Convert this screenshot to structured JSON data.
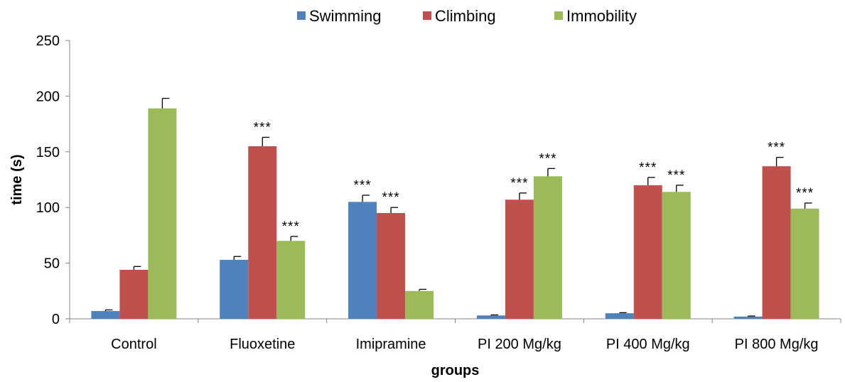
{
  "chart_data": {
    "type": "bar",
    "xlabel": "groups",
    "ylabel": "time (s)",
    "ylim": [
      0,
      250
    ],
    "yticks": [
      0,
      50,
      100,
      150,
      200,
      250
    ],
    "categories": [
      "Control",
      "Fluoxetine",
      "Imipramine",
      "PI 200 Mg/kg",
      "PI 400 Mg/kg",
      "PI 800 Mg/kg"
    ],
    "series": [
      {
        "name": "Swimming",
        "color": "#4F81BD",
        "values": [
          7,
          53,
          105,
          3,
          5,
          2
        ],
        "errors": [
          1,
          3,
          6,
          0.5,
          0.5,
          0.5
        ],
        "labels": [
          "",
          "",
          "***",
          "",
          "",
          ""
        ]
      },
      {
        "name": "Climbing",
        "color": "#C0504D",
        "values": [
          44,
          155,
          95,
          107,
          120,
          137
        ],
        "errors": [
          3,
          8,
          5,
          6,
          7,
          8
        ],
        "labels": [
          "",
          "***",
          "***",
          "***",
          "***",
          "***"
        ]
      },
      {
        "name": "Immobility",
        "color": "#9BBB59",
        "values": [
          189,
          70,
          25,
          128,
          114,
          99
        ],
        "errors": [
          9,
          4,
          1.5,
          7,
          6,
          5
        ],
        "labels": [
          "",
          "***",
          "",
          "***",
          "***",
          "***"
        ]
      }
    ],
    "grid": false,
    "legend_position": "top"
  }
}
